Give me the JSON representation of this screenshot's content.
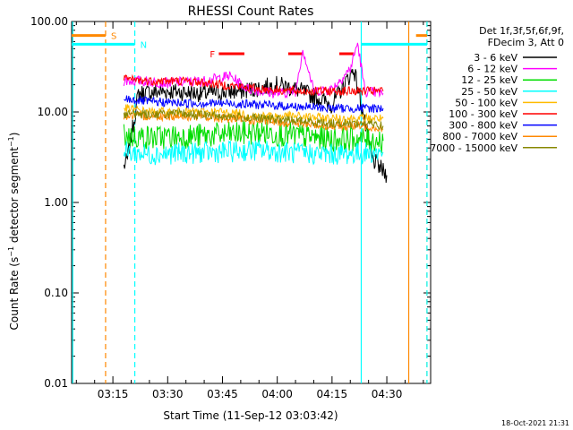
{
  "chart_data": {
    "type": "line",
    "title": "RHESSI Count Rates",
    "xlabel": "Start Time (11-Sep-12 03:03:42)",
    "ylabel": "Count Rate (s⁻¹ detector segment⁻¹)",
    "ylabel_parts": {
      "base": "Count Rate (s",
      "sup1": "−1",
      "mid": " detector segment",
      "sup2": "−1",
      "end": ")"
    },
    "y_scale": "log",
    "ylim": [
      0.01,
      100
    ],
    "xlim": [
      "03:03:42",
      "04:42:00"
    ],
    "x_ticks": [
      "03:15",
      "03:30",
      "03:45",
      "04:00",
      "04:15",
      "04:30"
    ],
    "y_ticks": [
      "0.01",
      "0.10",
      "1.00",
      "10.00",
      "100.00"
    ],
    "legend_header": [
      "Det 1f,3f,5f,6f,9f,",
      "FDecim 3, Att 0"
    ],
    "legend_position": "right",
    "footer_date": "18-Oct-2021 21:31",
    "series": [
      {
        "name": "3 - 6 keV",
        "color": "#000000",
        "x": [
          "03:18",
          "03:19",
          "03:22",
          "03:30",
          "03:40",
          "03:50",
          "04:00",
          "04:05",
          "04:10",
          "04:15",
          "04:21",
          "04:26",
          "04:30"
        ],
        "y": [
          2.5,
          3,
          16,
          17,
          16,
          17,
          20,
          18,
          15,
          12,
          30,
          3,
          2
        ]
      },
      {
        "name": "6 - 12 keV",
        "color": "#ff00ff",
        "x": [
          "03:18",
          "03:22",
          "03:30",
          "03:40",
          "03:47",
          "03:52",
          "04:00",
          "04:05",
          "04:07",
          "04:10",
          "04:15",
          "04:20",
          "04:22",
          "04:24",
          "04:29"
        ],
        "y": [
          22,
          22,
          21,
          22,
          25,
          18,
          16,
          17,
          50,
          17,
          18,
          30,
          58,
          17,
          16
        ]
      },
      {
        "name": "12 - 25 keV",
        "color": "#00dd00",
        "x": [
          "03:18",
          "03:25",
          "03:35",
          "03:45",
          "03:55",
          "04:05",
          "04:15",
          "04:25",
          "04:29"
        ],
        "y": [
          5.5,
          5.2,
          5.4,
          5.6,
          6.0,
          5.5,
          5.0,
          5.0,
          4.8
        ]
      },
      {
        "name": "25 - 50 keV",
        "color": "#00ffff",
        "x": [
          "03:18",
          "03:25",
          "03:35",
          "03:45",
          "03:55",
          "04:05",
          "04:15",
          "04:25",
          "04:29"
        ],
        "y": [
          3.6,
          3.4,
          3.5,
          3.6,
          3.8,
          3.5,
          3.4,
          3.5,
          3.6
        ]
      },
      {
        "name": "50 - 100 keV",
        "color": "#ffbb00",
        "x": [
          "03:18",
          "03:25",
          "03:35",
          "03:45",
          "03:55",
          "04:05",
          "04:15",
          "04:25",
          "04:29"
        ],
        "y": [
          11,
          10,
          10,
          10,
          9,
          9,
          8.5,
          8.5,
          8.5
        ]
      },
      {
        "name": "100 - 300 keV",
        "color": "#ff0000",
        "x": [
          "03:18",
          "03:25",
          "03:35",
          "03:45",
          "03:55",
          "04:05",
          "04:15",
          "04:25",
          "04:29"
        ],
        "y": [
          23,
          22,
          22,
          20,
          18,
          17,
          17,
          17,
          17
        ]
      },
      {
        "name": "300 - 800 keV",
        "color": "#0000ff",
        "x": [
          "03:18",
          "03:25",
          "03:35",
          "03:45",
          "03:55",
          "04:05",
          "04:15",
          "04:25",
          "04:29"
        ],
        "y": [
          14,
          13,
          12.5,
          12.5,
          12,
          11.5,
          11,
          11,
          11
        ]
      },
      {
        "name": "800 - 7000 keV",
        "color": "#ff8800",
        "x": [
          "03:18",
          "03:25",
          "03:35",
          "03:45",
          "03:55",
          "04:05",
          "04:15",
          "04:25",
          "04:29"
        ],
        "y": [
          9,
          9,
          9,
          8.5,
          8,
          7.5,
          7,
          7,
          6.5
        ]
      },
      {
        "name": "7000 - 15000 keV",
        "color": "#888800",
        "x": [
          "03:18",
          "03:25",
          "03:35",
          "03:45",
          "03:55",
          "04:05",
          "04:15",
          "04:25",
          "04:29"
        ],
        "y": [
          9.5,
          9.5,
          9.5,
          9,
          8.5,
          8,
          7.5,
          7.5,
          7
        ]
      }
    ],
    "annotations": [
      {
        "label": "S",
        "color": "#ff8800",
        "bars": [
          [
            "03:03:42",
            "03:13"
          ],
          [
            "04:38",
            "04:41"
          ]
        ],
        "level": 70
      },
      {
        "label": "N",
        "color": "#00ffff",
        "bars": [
          [
            "03:03:42",
            "03:21"
          ],
          [
            "04:23",
            "04:41"
          ]
        ],
        "level": 56
      },
      {
        "label": "F",
        "color": "#ff0000",
        "bars": [
          [
            "03:44",
            "03:51"
          ],
          [
            "04:03",
            "04:07"
          ],
          [
            "04:17",
            "04:21"
          ]
        ],
        "level": 44
      }
    ],
    "vlines": [
      {
        "time": "03:04",
        "color": "#00ffff",
        "style": "solid"
      },
      {
        "time": "03:13",
        "color": "#ff8800",
        "style": "dashed"
      },
      {
        "time": "03:21",
        "color": "#00ffff",
        "style": "dashed"
      },
      {
        "time": "04:23",
        "color": "#00ffff",
        "style": "solid"
      },
      {
        "time": "04:36",
        "color": "#ff8800",
        "style": "solid"
      },
      {
        "time": "04:41",
        "color": "#ff8800",
        "style": "dashed"
      },
      {
        "time": "04:41",
        "color": "#00ffff",
        "style": "dashed"
      }
    ]
  }
}
